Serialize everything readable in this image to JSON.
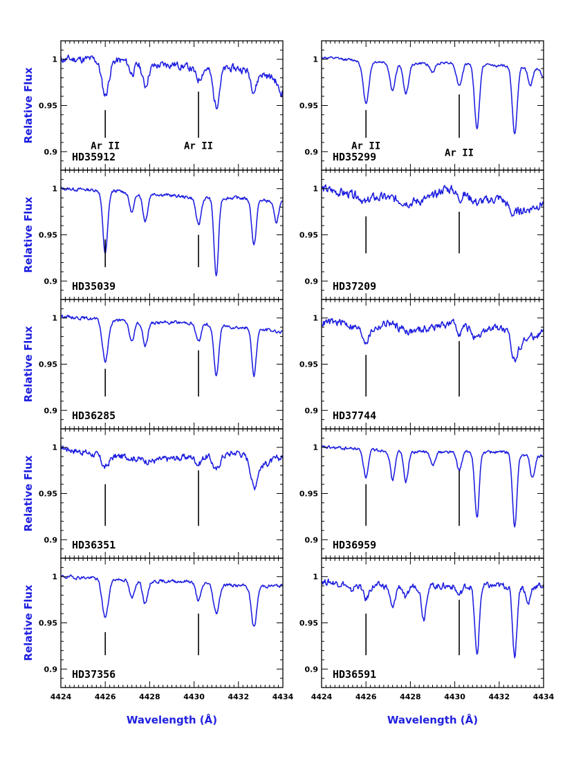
{
  "colors": {
    "spectrum": "#1f1fe0",
    "label_text": "#1f1fe0",
    "frame": "#000000"
  },
  "chart_data": {
    "type": "line",
    "layout": "5 rows x 2 columns of stacked spectrum panels, shared x axis per column",
    "xlabel": "Wavelength (Å)",
    "ylabel": "Relative Flux",
    "xlim": [
      4424,
      4434
    ],
    "ylim": [
      0.88,
      1.02
    ],
    "x_ticks": [
      "4424",
      "4426",
      "4428",
      "4430",
      "4432",
      "4434"
    ],
    "y_ticks": [
      "0.9",
      "0.95",
      "1"
    ],
    "marker_lines_wavelength": [
      4426.0,
      4430.2
    ],
    "marker_line_label": "Ar II",
    "panels": [
      {
        "star": "HD35912",
        "col": 0,
        "row": 0,
        "marker_ranges": [
          [
            0.915,
            0.945
          ],
          [
            0.915,
            0.965
          ]
        ],
        "labels": true,
        "continuum": [
          [
            4424,
            1.0
          ],
          [
            4425.5,
            1.0
          ],
          [
            4427,
            0.998
          ],
          [
            4428,
            0.992
          ],
          [
            4429,
            0.995
          ],
          [
            4430,
            0.99
          ],
          [
            4431,
            0.99
          ],
          [
            4432,
            0.99
          ],
          [
            4433,
            0.985
          ],
          [
            4434,
            0.975
          ]
        ],
        "lines": [
          [
            4426.0,
            0.038,
            0.16
          ],
          [
            4427.2,
            0.012,
            0.12
          ],
          [
            4427.8,
            0.022,
            0.12
          ],
          [
            4430.2,
            0.012,
            0.13
          ],
          [
            4431.0,
            0.04,
            0.14
          ],
          [
            4432.7,
            0.02,
            0.13
          ],
          [
            4433.9,
            0.012,
            0.12
          ]
        ],
        "noise": 0.0035,
        "seed": 11
      },
      {
        "star": "HD35299",
        "col": 1,
        "row": 0,
        "marker_ranges": [
          [
            0.915,
            0.945
          ],
          [
            0.915,
            0.962
          ]
        ],
        "labels": true,
        "continuum": [
          [
            4424,
            1.002
          ],
          [
            4426,
            0.998
          ],
          [
            4428,
            0.995
          ],
          [
            4430,
            0.997
          ],
          [
            4432,
            0.993
          ],
          [
            4434,
            0.99
          ]
        ],
        "lines": [
          [
            4426.0,
            0.045,
            0.13
          ],
          [
            4427.2,
            0.03,
            0.12
          ],
          [
            4427.8,
            0.032,
            0.12
          ],
          [
            4429.0,
            0.01,
            0.12
          ],
          [
            4430.2,
            0.025,
            0.13
          ],
          [
            4431.0,
            0.07,
            0.11
          ],
          [
            4432.7,
            0.072,
            0.11
          ],
          [
            4433.4,
            0.02,
            0.1
          ],
          [
            4434.0,
            0.01,
            0.1
          ]
        ],
        "noise": 0.0012,
        "seed": 12
      },
      {
        "star": "HD35039",
        "col": 0,
        "row": 1,
        "marker_ranges": [
          [
            0.915,
            0.945
          ],
          [
            0.915,
            0.95
          ]
        ],
        "labels": false,
        "continuum": [
          [
            4424,
            1.0
          ],
          [
            4426,
            0.998
          ],
          [
            4428,
            0.995
          ],
          [
            4430,
            0.99
          ],
          [
            4432,
            0.99
          ],
          [
            4434,
            0.985
          ]
        ],
        "lines": [
          [
            4426.0,
            0.068,
            0.11
          ],
          [
            4427.2,
            0.022,
            0.11
          ],
          [
            4427.8,
            0.03,
            0.11
          ],
          [
            4430.2,
            0.03,
            0.11
          ],
          [
            4431.0,
            0.085,
            0.1
          ],
          [
            4432.7,
            0.05,
            0.1
          ],
          [
            4433.7,
            0.022,
            0.1
          ]
        ],
        "noise": 0.0015,
        "seed": 13
      },
      {
        "star": "HD37209",
        "col": 1,
        "row": 1,
        "marker_ranges": [
          [
            0.93,
            0.97
          ],
          [
            0.93,
            0.975
          ]
        ],
        "labels": false,
        "continuum": [
          [
            4424,
            1.0
          ],
          [
            4425,
            0.995
          ],
          [
            4426,
            0.99
          ],
          [
            4427,
            0.99
          ],
          [
            4428,
            0.985
          ],
          [
            4429,
            0.99
          ],
          [
            4429.5,
            1.0
          ],
          [
            4430.2,
            0.998
          ],
          [
            4431,
            0.985
          ],
          [
            4432,
            0.99
          ],
          [
            4433,
            0.975
          ],
          [
            4434,
            0.985
          ]
        ],
        "lines": [
          [
            4426.0,
            0.006,
            0.12
          ],
          [
            4430.2,
            0.008,
            0.12
          ],
          [
            4432.6,
            0.008,
            0.15
          ]
        ],
        "noise": 0.004,
        "seed": 14
      },
      {
        "star": "HD36285",
        "col": 0,
        "row": 2,
        "marker_ranges": [
          [
            0.915,
            0.945
          ],
          [
            0.915,
            0.965
          ]
        ],
        "labels": false,
        "continuum": [
          [
            4424,
            1.002
          ],
          [
            4426,
            0.998
          ],
          [
            4428,
            0.995
          ],
          [
            4430,
            0.995
          ],
          [
            4432,
            0.99
          ],
          [
            4434,
            0.985
          ]
        ],
        "lines": [
          [
            4426.0,
            0.045,
            0.13
          ],
          [
            4427.2,
            0.022,
            0.11
          ],
          [
            4427.8,
            0.025,
            0.11
          ],
          [
            4430.2,
            0.02,
            0.12
          ],
          [
            4431.0,
            0.055,
            0.11
          ],
          [
            4432.7,
            0.05,
            0.1
          ]
        ],
        "noise": 0.0015,
        "seed": 15
      },
      {
        "star": "HD37744",
        "col": 1,
        "row": 2,
        "marker_ranges": [
          [
            0.915,
            0.96
          ],
          [
            0.915,
            0.975
          ]
        ],
        "labels": false,
        "continuum": [
          [
            4424,
            0.995
          ],
          [
            4425,
            0.995
          ],
          [
            4426,
            0.985
          ],
          [
            4427,
            0.995
          ],
          [
            4428,
            0.985
          ],
          [
            4429,
            0.99
          ],
          [
            4430,
            0.995
          ],
          [
            4431,
            0.985
          ],
          [
            4432,
            0.99
          ],
          [
            4433,
            0.975
          ],
          [
            4434,
            0.985
          ]
        ],
        "lines": [
          [
            4426.0,
            0.01,
            0.14
          ],
          [
            4430.2,
            0.008,
            0.12
          ],
          [
            4431.0,
            0.01,
            0.15
          ],
          [
            4432.7,
            0.025,
            0.14
          ]
        ],
        "noise": 0.0035,
        "seed": 16
      },
      {
        "star": "HD36351",
        "col": 0,
        "row": 3,
        "marker_ranges": [
          [
            0.915,
            0.96
          ],
          [
            0.915,
            0.975
          ]
        ],
        "labels": false,
        "continuum": [
          [
            4424,
            1.0
          ],
          [
            4425,
            0.995
          ],
          [
            4426,
            0.99
          ],
          [
            4427,
            0.99
          ],
          [
            4428,
            0.985
          ],
          [
            4429,
            0.988
          ],
          [
            4430,
            0.99
          ],
          [
            4431,
            0.99
          ],
          [
            4432,
            0.995
          ],
          [
            4433,
            0.98
          ],
          [
            4434,
            0.99
          ]
        ],
        "lines": [
          [
            4426.0,
            0.012,
            0.15
          ],
          [
            4430.2,
            0.008,
            0.12
          ],
          [
            4431.0,
            0.015,
            0.14
          ],
          [
            4432.7,
            0.028,
            0.13
          ]
        ],
        "noise": 0.003,
        "seed": 17
      },
      {
        "star": "HD36959",
        "col": 1,
        "row": 3,
        "marker_ranges": [
          [
            0.915,
            0.96
          ],
          [
            0.915,
            0.975
          ]
        ],
        "labels": false,
        "continuum": [
          [
            4424,
            1.0
          ],
          [
            4426,
            0.998
          ],
          [
            4428,
            0.995
          ],
          [
            4430,
            0.995
          ],
          [
            4432,
            0.995
          ],
          [
            4434,
            0.99
          ]
        ],
        "lines": [
          [
            4426.0,
            0.03,
            0.11
          ],
          [
            4427.2,
            0.032,
            0.1
          ],
          [
            4427.8,
            0.032,
            0.1
          ],
          [
            4429.0,
            0.015,
            0.1
          ],
          [
            4430.2,
            0.02,
            0.11
          ],
          [
            4431.0,
            0.072,
            0.1
          ],
          [
            4432.7,
            0.08,
            0.1
          ],
          [
            4433.5,
            0.025,
            0.1
          ]
        ],
        "noise": 0.0015,
        "seed": 18
      },
      {
        "star": "HD37356",
        "col": 0,
        "row": 4,
        "marker_ranges": [
          [
            0.915,
            0.94
          ],
          [
            0.915,
            0.96
          ]
        ],
        "labels": false,
        "continuum": [
          [
            4424,
            1.0
          ],
          [
            4426,
            0.998
          ],
          [
            4428,
            0.995
          ],
          [
            4430,
            0.995
          ],
          [
            4432,
            0.99
          ],
          [
            4434,
            0.99
          ]
        ],
        "lines": [
          [
            4426.0,
            0.042,
            0.14
          ],
          [
            4427.2,
            0.02,
            0.11
          ],
          [
            4427.8,
            0.025,
            0.11
          ],
          [
            4430.2,
            0.02,
            0.12
          ],
          [
            4431.0,
            0.032,
            0.13
          ],
          [
            4432.7,
            0.045,
            0.12
          ]
        ],
        "noise": 0.0015,
        "seed": 19
      },
      {
        "star": "HD36591",
        "col": 1,
        "row": 4,
        "marker_ranges": [
          [
            0.915,
            0.96
          ],
          [
            0.915,
            0.975
          ]
        ],
        "labels": false,
        "continuum": [
          [
            4424,
            0.995
          ],
          [
            4426,
            0.99
          ],
          [
            4428,
            0.99
          ],
          [
            4430,
            0.99
          ],
          [
            4432,
            0.99
          ],
          [
            4434,
            0.99
          ]
        ],
        "lines": [
          [
            4425.3,
            0.008,
            0.12
          ],
          [
            4426.0,
            0.015,
            0.12
          ],
          [
            4427.2,
            0.025,
            0.11
          ],
          [
            4427.8,
            0.015,
            0.1
          ],
          [
            4428.6,
            0.035,
            0.1
          ],
          [
            4430.2,
            0.01,
            0.12
          ],
          [
            4431.0,
            0.075,
            0.1
          ],
          [
            4432.7,
            0.075,
            0.1
          ],
          [
            4433.3,
            0.02,
            0.1
          ]
        ],
        "noise": 0.003,
        "seed": 20
      }
    ]
  }
}
